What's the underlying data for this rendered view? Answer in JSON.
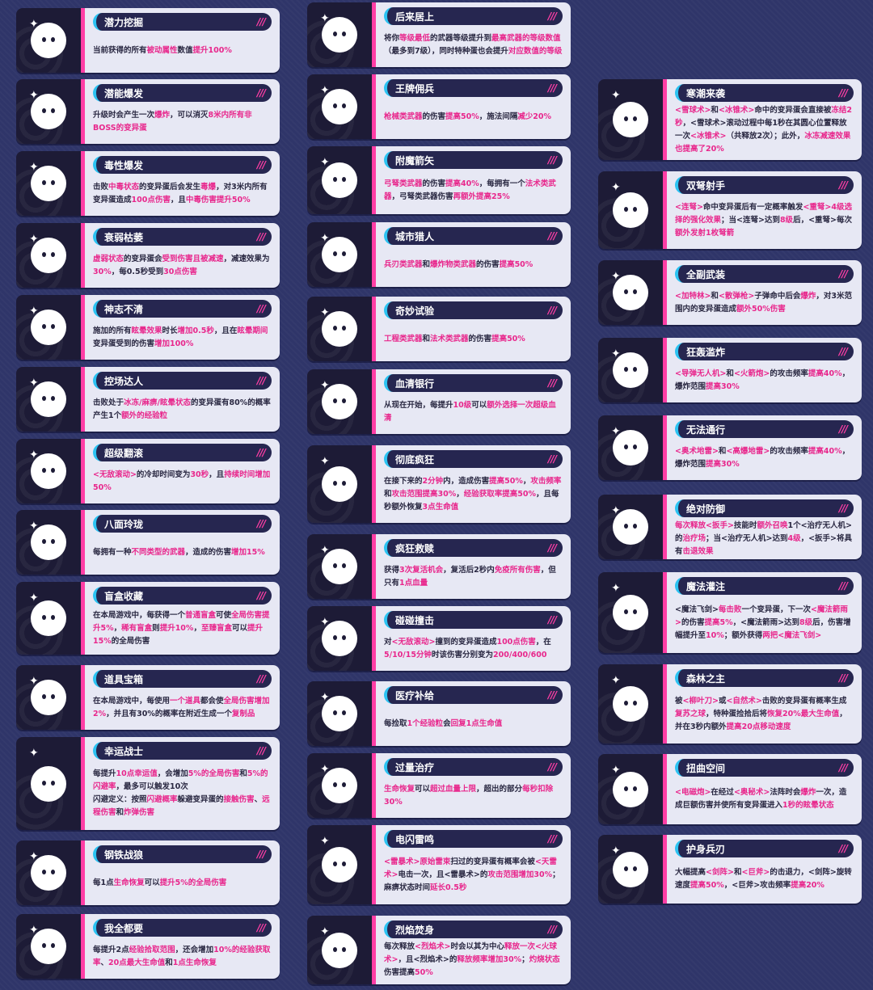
{
  "colors": {
    "background": "#2f3569",
    "accent_pink": "#ff3ea5",
    "accent_cyan": "#2cc3f2",
    "highlight": "#e8278c",
    "panel": "#e7e8f4",
    "title_bar": "#262650"
  },
  "title_decoration": "///",
  "columns": [
    {
      "cards": [
        {
          "icon": "potential-dig-icon",
          "title": "潜力挖掘",
          "desc": [
            [
              "当前获得的所有",
              "被动属性",
              "数值",
              "提升100%"
            ]
          ]
        },
        {
          "icon": "potential-burst-icon",
          "title": "潜能爆发",
          "desc": [
            [
              "升级时会产生一次",
              "爆炸",
              "，可以消灭",
              "8米内所有非BOSS的变异蛋"
            ]
          ]
        },
        {
          "icon": "toxic-burst-icon",
          "title": "毒性爆发",
          "desc": [
            [
              "击败",
              "中毒状态",
              "的变异蛋后会发生",
              "毒爆",
              "，对3米内所有变异蛋造成",
              "100点伤害",
              "，且",
              "中毒伤害提升50%"
            ]
          ]
        },
        {
          "icon": "wither-icon",
          "title": "衰弱枯萎",
          "desc": [
            [
              "",
              "虚弱状态",
              "的变异蛋会",
              "受到伤害且被减速",
              "，减速效果为",
              "30%",
              "，每0.5秒受到",
              "30点伤害"
            ]
          ]
        },
        {
          "icon": "dizzy-icon",
          "title": "神志不清",
          "desc": [
            [
              "施加的所有",
              "眩晕效果",
              "时长",
              "增加0.5秒",
              "，且在",
              "眩晕期间",
              "变异蛋受到的伤害",
              "增加100%"
            ]
          ]
        },
        {
          "icon": "crowd-control-icon",
          "title": "控场达人",
          "desc": [
            [
              "击败处于",
              "冰冻/麻痹/眩晕状态",
              "的变异蛋有80%的概率产生1个",
              "额外的经验粒"
            ]
          ]
        },
        {
          "icon": "super-roll-icon",
          "title": "超级翻滚",
          "desc": [
            [
              "",
              "<无敌滚动>",
              "的冷却时间变为",
              "30秒",
              "，且",
              "持续时间增加50%"
            ]
          ]
        },
        {
          "icon": "versatile-icon",
          "title": "八面玲珑",
          "desc": [
            [
              "每拥有一种",
              "不同类型的武器",
              "，造成的伤害",
              "增加15%"
            ]
          ]
        },
        {
          "icon": "blind-box-icon",
          "title": "盲盒收藏",
          "desc": [
            [
              "在本局游戏中，每获得一个",
              "普通盲盒",
              "可使",
              "全局伤害提升5%",
              "，",
              "稀有盲盒",
              "则",
              "提升10%",
              "，",
              "至臻盲盒",
              "可以",
              "提升15%",
              "的全局伤害"
            ]
          ]
        },
        {
          "icon": "item-chest-icon",
          "title": "道具宝箱",
          "desc": [
            [
              "在本局游戏中，每使用",
              "一个道具",
              "都会使",
              "全局伤害增加2%",
              "，并且有30%的概率在附近生成一个",
              "复制品"
            ]
          ]
        },
        {
          "icon": "lucky-warrior-icon",
          "title": "幸运战士",
          "desc": [
            [
              "每提升",
              "10点幸运值",
              "，会增加",
              "5%的全局伤害",
              "和",
              "5%的闪避率",
              "，最多可以触发10次"
            ],
            [
              "闪避定义：按照",
              "闪避概率",
              "躲避变异蛋的",
              "接触伤害",
              "、",
              "远程伤害",
              "和",
              "炸弹伤害"
            ]
          ]
        },
        {
          "icon": "steel-wolf-icon",
          "title": "钢铁战狼",
          "desc": [
            [
              "每1点",
              "生命恢复",
              "可以",
              "提升5%的全局伤害"
            ]
          ]
        },
        {
          "icon": "want-all-icon",
          "title": "我全都要",
          "desc": [
            [
              "每提升2点",
              "经验拾取范围",
              "，还会增加",
              "10%的经验获取率",
              "、",
              "20点最大生命值",
              "和",
              "1点生命恢复"
            ]
          ]
        }
      ]
    },
    {
      "cards": [
        {
          "icon": "catch-up-icon",
          "title": "后来居上",
          "desc": [
            [
              "将你",
              "等级最低",
              "的武器等级提升到",
              "最高武器的等级数值",
              "（最多到7级），同时特种蛋也会提升",
              "对应数值的等级"
            ]
          ]
        },
        {
          "icon": "ace-mercenary-icon",
          "title": "王牌佣兵",
          "desc": [
            [
              "",
              "枪械类武器",
              "的伤害",
              "提高50%",
              "，施法间隔",
              "减少20%"
            ]
          ]
        },
        {
          "icon": "enchanted-arrow-icon",
          "title": "附魔箭矢",
          "desc": [
            [
              "",
              "弓弩类武器",
              "的伤害",
              "提高40%",
              "，每拥有一个",
              "法术类武器",
              "，弓弩类武器伤害",
              "再额外提高25%"
            ]
          ]
        },
        {
          "icon": "city-hunter-icon",
          "title": "城市猎人",
          "desc": [
            [
              "",
              "兵刃类武器",
              "和",
              "爆炸物类武器",
              "的伤害",
              "提高50%"
            ]
          ]
        },
        {
          "icon": "experiment-icon",
          "title": "奇妙试验",
          "desc": [
            [
              "",
              "工程类武器",
              "和",
              "法术类武器",
              "的伤害",
              "提高50%"
            ]
          ]
        },
        {
          "icon": "serum-bank-icon",
          "title": "血清银行",
          "desc": [
            [
              "从现在开始，每提升",
              "10级",
              "可以",
              "额外选择一次超级血清"
            ]
          ]
        },
        {
          "icon": "frenzy-icon",
          "title": "彻底疯狂",
          "desc": [
            [
              "在接下来的",
              "2分钟",
              "内，造成伤害",
              "提高50%",
              "，",
              "攻击频率",
              "和",
              "攻击范围提高30%",
              "，",
              "经验获取率提高50%",
              "，且每秒额外恢复",
              "3点生命值"
            ]
          ]
        },
        {
          "icon": "redemption-icon",
          "title": "疯狂救赎",
          "desc": [
            [
              "获得",
              "3次复活机会",
              "，复活后2秒内",
              "免疫所有伤害",
              "，但只有",
              "1点血量"
            ]
          ]
        },
        {
          "icon": "bump-icon",
          "title": "碰碰撞击",
          "desc": [
            [
              "对",
              "<无敌滚动>",
              "撞到的变异蛋造成",
              "100点伤害",
              "，在",
              "5/10/15分钟",
              "时该伤害分别变为",
              "200/400/600"
            ]
          ]
        },
        {
          "icon": "medical-supply-icon",
          "title": "医疗补给",
          "desc": [
            [
              "每捡取",
              "1个经验粒",
              "会",
              "回复1点生命值"
            ]
          ]
        },
        {
          "icon": "overheal-icon",
          "title": "过量治疗",
          "desc": [
            [
              "",
              "生命恢复",
              "可以",
              "超过血量上限",
              "，超出的部分",
              "每秒扣除30%"
            ]
          ]
        },
        {
          "icon": "thunder-icon",
          "title": "电闪雷鸣",
          "desc": [
            [
              "",
              "<雷暴术>原始雷束",
              "扫过的变异蛋有概率会被",
              "<天雷术>",
              "电击一次，且<雷暴术>的",
              "攻击范围增加30%",
              "；麻痹状态时间",
              "延长0.5秒"
            ]
          ]
        },
        {
          "icon": "flame-icon",
          "title": "烈焰焚身",
          "desc": [
            [
              "每次释放",
              "<烈焰术>",
              "时会以其为中心",
              "释放一次<火球术>",
              "，且<烈焰术>的",
              "释放频率增加30%",
              "；",
              "灼烧状态",
              "伤害提高",
              "50%"
            ]
          ]
        }
      ]
    },
    {
      "cards": [
        {
          "icon": "cold-wave-icon",
          "title": "寒潮来袭",
          "desc": [
            [
              "",
              "<雪球术>",
              "和",
              "<冰锥术>",
              "命中的变异蛋会直接被",
              "冻结2秒",
              "，<雪球术>滚动过程中每1秒在其圆心位置释放一次",
              "<冰锥术>",
              "（共释放2次）；此外，",
              "冰冻减速效果也提高了20%"
            ]
          ]
        },
        {
          "icon": "dual-crossbow-icon",
          "title": "双弩射手",
          "desc": [
            [
              "",
              "<连弩>",
              "命中变异蛋后有一定概率触发",
              "<重弩>4级选择的强化效果",
              "；当<连弩>达到",
              "8级",
              "后，<重弩>每次",
              "额外发射1枚弩箭"
            ]
          ]
        },
        {
          "icon": "full-armed-icon",
          "title": "全副武装",
          "desc": [
            [
              "",
              "<加特林>",
              "和",
              "<散弹枪>",
              "子弹命中后会",
              "爆炸",
              "，对3米范围内的变异蛋造成",
              "额外50%伤害"
            ]
          ]
        },
        {
          "icon": "bombard-icon",
          "title": "狂轰滥炸",
          "desc": [
            [
              "",
              "<导弹无人机>",
              "和",
              "<火箭炮>",
              "的攻击频率",
              "提高40%",
              "，爆炸范围",
              "提高30%"
            ]
          ]
        },
        {
          "icon": "no-entry-icon",
          "title": "无法通行",
          "desc": [
            [
              "",
              "<奥术地雷>",
              "和",
              "<高爆地雷>",
              "的攻击频率",
              "提高40%",
              "，爆炸范围",
              "提高30%"
            ]
          ]
        },
        {
          "icon": "absolute-defense-icon",
          "title": "绝对防御",
          "desc": [
            [
              "",
              "每次释放<扳手>",
              "技能时",
              "额外召唤",
              "1个<治疗无人机>的",
              "治疗场",
              "；当<治疗无人机>达到",
              "4级",
              "，<扳手>将具有",
              "击退效果"
            ]
          ]
        },
        {
          "icon": "magic-infusion-icon",
          "title": "魔法灌注",
          "desc": [
            [
              "<魔法飞剑>",
              "每击败",
              "一个变异蛋，下一次",
              "<魔法箭雨>",
              "的伤害",
              "提高5%",
              "，<魔法箭雨>达到",
              "8级",
              "后，伤害增幅提升至",
              "10%",
              "；额外获得",
              "两把<魔法飞剑>"
            ]
          ]
        },
        {
          "icon": "forest-lord-icon",
          "title": "森林之主",
          "desc": [
            [
              "被",
              "<柳叶刀>",
              "或",
              "<自然术>",
              "击败的变异蛋有概率生成",
              "复苏之球",
              "，特种蛋捡拾后将",
              "恢复20%最大生命值",
              "，并在3秒内额外",
              "提高20点移动速度"
            ]
          ]
        },
        {
          "icon": "twisted-space-icon",
          "title": "扭曲空间",
          "desc": [
            [
              "",
              "<电磁炮>",
              "在经过",
              "<奥秘术>",
              "法阵时会",
              "爆炸",
              "一次，造成巨额伤害并使所有变异蛋进入",
              "1秒的眩晕状态"
            ]
          ]
        },
        {
          "icon": "guard-blade-icon",
          "title": "护身兵刃",
          "desc": [
            [
              "大幅提高",
              "<剑阵>",
              "和",
              "<巨斧>",
              "的击退力，<剑阵>旋转速度",
              "提高50%",
              "，<巨斧>攻击频率",
              "提高20%"
            ]
          ]
        }
      ]
    }
  ]
}
